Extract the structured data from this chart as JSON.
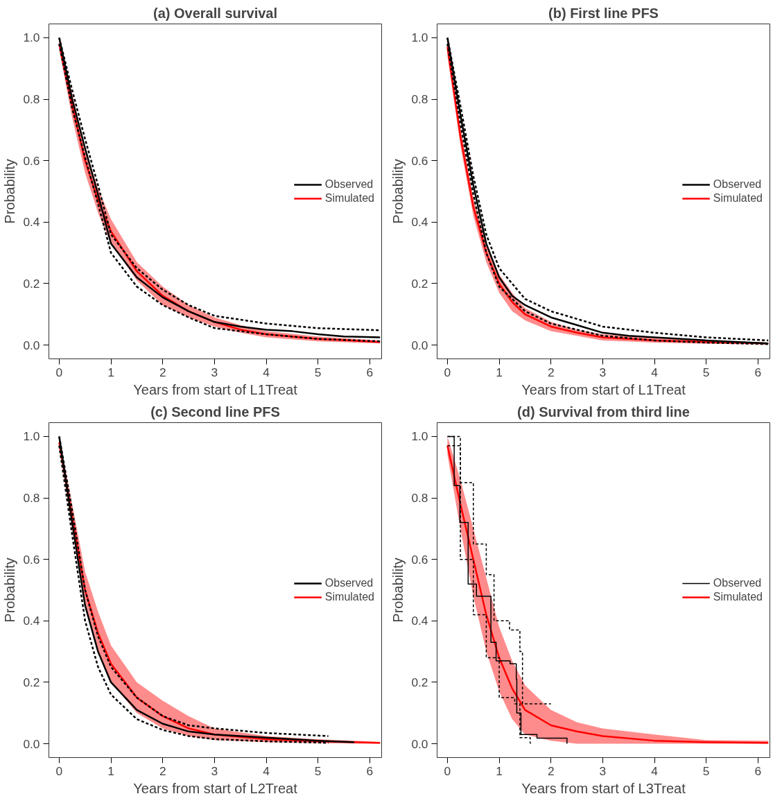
{
  "chart_data": [
    {
      "type": "line",
      "title": "(a) Overall survival",
      "xlabel": "Years from start of L1Treat",
      "ylabel": "Probability",
      "xlim": [
        -0.2,
        6.23
      ],
      "ylim": [
        -0.045,
        1.045
      ],
      "xticks": [
        0,
        1,
        2,
        3,
        4,
        5,
        6
      ],
      "yticks": [
        {
          "value": 0,
          "label": "0.0"
        },
        {
          "value": 0.2,
          "label": "0.2"
        },
        {
          "value": 0.4,
          "label": "0.4"
        },
        {
          "value": 0.6,
          "label": "0.6"
        },
        {
          "value": 0.8,
          "label": "0.8"
        },
        {
          "value": 1,
          "label": "1.0"
        }
      ],
      "grid": false,
      "legend": "right",
      "series": [
        {
          "name": "Observed",
          "color": "#000000",
          "line_style": "solid",
          "x": [
            0,
            0.25,
            0.5,
            0.75,
            1,
            1.5,
            2,
            2.5,
            3,
            3.5,
            4,
            4.5,
            5,
            5.5,
            6.2
          ],
          "values": [
            1.0,
            0.8,
            0.64,
            0.49,
            0.33,
            0.22,
            0.155,
            0.11,
            0.075,
            0.06,
            0.05,
            0.045,
            0.035,
            0.028,
            0.025
          ]
        },
        {
          "color": "#000000",
          "line_style": "dashed",
          "x": [
            0,
            0.25,
            0.5,
            0.75,
            1,
            1.5,
            2,
            2.5,
            3,
            4,
            5,
            6.2
          ],
          "values": [
            1.0,
            0.83,
            0.67,
            0.52,
            0.36,
            0.25,
            0.18,
            0.13,
            0.095,
            0.07,
            0.055,
            0.048
          ]
        },
        {
          "color": "#000000",
          "line_style": "dashed",
          "x": [
            0,
            0.25,
            0.5,
            0.75,
            1,
            1.5,
            2,
            2.5,
            3,
            4,
            5,
            6.2
          ],
          "values": [
            0.98,
            0.77,
            0.61,
            0.46,
            0.3,
            0.19,
            0.13,
            0.09,
            0.055,
            0.035,
            0.02,
            0.012
          ]
        },
        {
          "name": "Simulated",
          "color": "#ff0000",
          "line_style": "solid",
          "x": [
            0,
            0.25,
            0.5,
            0.75,
            1,
            1.5,
            2,
            2.5,
            3,
            3.5,
            4,
            5,
            6.2
          ],
          "values": [
            0.98,
            0.78,
            0.6,
            0.47,
            0.37,
            0.24,
            0.16,
            0.11,
            0.075,
            0.05,
            0.035,
            0.02,
            0.01
          ],
          "lower": [
            0.96,
            0.74,
            0.56,
            0.43,
            0.33,
            0.21,
            0.13,
            0.09,
            0.06,
            0.04,
            0.025,
            0.012,
            0.005
          ],
          "upper": [
            1.0,
            0.82,
            0.64,
            0.51,
            0.41,
            0.27,
            0.19,
            0.13,
            0.09,
            0.065,
            0.045,
            0.028,
            0.015
          ]
        }
      ]
    },
    {
      "type": "line",
      "title": "(b) First line PFS",
      "xlabel": "Years from start of L1Treat",
      "ylabel": "Probability",
      "xlim": [
        -0.2,
        6.23
      ],
      "ylim": [
        -0.045,
        1.045
      ],
      "xticks": [
        0,
        1,
        2,
        3,
        4,
        5,
        6
      ],
      "yticks": [
        {
          "value": 0,
          "label": "0.0"
        },
        {
          "value": 0.2,
          "label": "0.2"
        },
        {
          "value": 0.4,
          "label": "0.4"
        },
        {
          "value": 0.6,
          "label": "0.6"
        },
        {
          "value": 0.8,
          "label": "0.8"
        },
        {
          "value": 1,
          "label": "1.0"
        }
      ],
      "grid": false,
      "legend": "right",
      "series": [
        {
          "name": "Observed",
          "color": "#000000",
          "line_style": "solid",
          "x": [
            0,
            0.25,
            0.5,
            0.75,
            1,
            1.25,
            1.5,
            2,
            2.5,
            3,
            3.5,
            4,
            5,
            6.2
          ],
          "values": [
            1.0,
            0.75,
            0.52,
            0.33,
            0.22,
            0.16,
            0.13,
            0.09,
            0.065,
            0.04,
            0.03,
            0.025,
            0.015,
            0.005
          ]
        },
        {
          "color": "#000000",
          "line_style": "dashed",
          "x": [
            0,
            0.25,
            0.5,
            0.75,
            1,
            1.5,
            2,
            2.5,
            3,
            4,
            5,
            6.2
          ],
          "values": [
            1.0,
            0.78,
            0.55,
            0.36,
            0.25,
            0.15,
            0.11,
            0.085,
            0.06,
            0.04,
            0.025,
            0.015
          ]
        },
        {
          "color": "#000000",
          "line_style": "dashed",
          "x": [
            0,
            0.25,
            0.5,
            0.75,
            1,
            1.5,
            2,
            2.5,
            3,
            4,
            5,
            6.2
          ],
          "values": [
            0.98,
            0.72,
            0.49,
            0.3,
            0.19,
            0.11,
            0.07,
            0.05,
            0.03,
            0.015,
            0.008,
            0.003
          ]
        },
        {
          "name": "Simulated",
          "color": "#ff0000",
          "line_style": "solid",
          "x": [
            0,
            0.25,
            0.5,
            0.75,
            1,
            1.25,
            1.5,
            2,
            2.5,
            3,
            4,
            5,
            6.2
          ],
          "values": [
            0.97,
            0.68,
            0.45,
            0.3,
            0.2,
            0.14,
            0.1,
            0.06,
            0.04,
            0.025,
            0.015,
            0.01,
            0.005
          ],
          "lower": [
            0.94,
            0.65,
            0.42,
            0.27,
            0.17,
            0.11,
            0.08,
            0.045,
            0.03,
            0.015,
            0.008,
            0.004,
            0.002
          ],
          "upper": [
            1.0,
            0.71,
            0.48,
            0.33,
            0.23,
            0.17,
            0.12,
            0.075,
            0.05,
            0.035,
            0.022,
            0.015,
            0.008
          ]
        }
      ]
    },
    {
      "type": "line",
      "title": "(c) Second line PFS",
      "xlabel": "Years from start of L2Treat",
      "ylabel": "Probability",
      "xlim": [
        -0.2,
        6.23
      ],
      "ylim": [
        -0.045,
        1.045
      ],
      "xticks": [
        0,
        1,
        2,
        3,
        4,
        5,
        6
      ],
      "yticks": [
        {
          "value": 0,
          "label": "0.0"
        },
        {
          "value": 0.2,
          "label": "0.2"
        },
        {
          "value": 0.4,
          "label": "0.4"
        },
        {
          "value": 0.6,
          "label": "0.6"
        },
        {
          "value": 0.8,
          "label": "0.8"
        },
        {
          "value": 1,
          "label": "1.0"
        }
      ],
      "grid": false,
      "legend": "right",
      "series": [
        {
          "name": "Observed",
          "color": "#000000",
          "line_style": "solid",
          "x": [
            0,
            0.25,
            0.5,
            0.75,
            1,
            1.5,
            2,
            2.5,
            3,
            4,
            5,
            5.7
          ],
          "values": [
            1.0,
            0.72,
            0.45,
            0.3,
            0.2,
            0.11,
            0.065,
            0.04,
            0.03,
            0.02,
            0.01,
            0.005
          ]
        },
        {
          "color": "#000000",
          "line_style": "dashed",
          "x": [
            0,
            0.25,
            0.5,
            0.75,
            1,
            1.5,
            2,
            2.5,
            3,
            4,
            5.2
          ],
          "values": [
            1.0,
            0.76,
            0.5,
            0.35,
            0.25,
            0.15,
            0.09,
            0.06,
            0.05,
            0.035,
            0.025
          ]
        },
        {
          "color": "#000000",
          "line_style": "dashed",
          "x": [
            0,
            0.25,
            0.5,
            0.75,
            1,
            1.5,
            2,
            2.5,
            3,
            4,
            5.2
          ],
          "values": [
            0.97,
            0.68,
            0.4,
            0.25,
            0.16,
            0.08,
            0.045,
            0.025,
            0.015,
            0.008,
            0.003
          ]
        },
        {
          "name": "Simulated",
          "color": "#ff0000",
          "line_style": "solid",
          "x": [
            0,
            0.25,
            0.5,
            0.75,
            1,
            1.5,
            2,
            2.5,
            3,
            4,
            5,
            6.2
          ],
          "values": [
            0.98,
            0.74,
            0.5,
            0.36,
            0.26,
            0.15,
            0.09,
            0.05,
            0.03,
            0.015,
            0.008,
            0.003
          ],
          "lower": [
            0.96,
            0.7,
            0.45,
            0.3,
            0.2,
            0.1,
            0.05,
            0.025,
            0.012,
            0.005,
            0.002,
            0.0
          ],
          "upper": [
            1.0,
            0.78,
            0.56,
            0.43,
            0.32,
            0.2,
            0.14,
            0.09,
            0.05,
            0.025,
            0.015,
            0.006
          ]
        }
      ]
    },
    {
      "type": "line",
      "title": "(d) Survival from third line",
      "xlabel": "Years from start of L3Treat",
      "ylabel": "Probability",
      "xlim": [
        -0.2,
        6.23
      ],
      "ylim": [
        -0.045,
        1.045
      ],
      "xticks": [
        0,
        1,
        2,
        3,
        4,
        5,
        6
      ],
      "yticks": [
        {
          "value": 0,
          "label": "0.0"
        },
        {
          "value": 0.2,
          "label": "0.2"
        },
        {
          "value": 0.4,
          "label": "0.4"
        },
        {
          "value": 0.6,
          "label": "0.6"
        },
        {
          "value": 0.8,
          "label": "0.8"
        },
        {
          "value": 1,
          "label": "1.0"
        }
      ],
      "grid": false,
      "legend": "right",
      "series": [
        {
          "name": "Observed",
          "type": "step",
          "color": "#000000",
          "line_style": "solid",
          "x": [
            0,
            0.13,
            0.24,
            0.4,
            0.56,
            0.84,
            0.94,
            1.21,
            1.33,
            1.34,
            1.42,
            1.73,
            2.31
          ],
          "values": [
            1.0,
            0.84,
            0.72,
            0.52,
            0.48,
            0.33,
            0.27,
            0.26,
            0.21,
            0.1,
            0.03,
            0.018,
            0.0
          ]
        },
        {
          "type": "step",
          "color": "#000000",
          "line_style": "dashed",
          "x": [
            0,
            0.25,
            0.5,
            0.75,
            0.9,
            1.2,
            1.4,
            1.45,
            2.0
          ],
          "values": [
            1.0,
            0.85,
            0.65,
            0.55,
            0.4,
            0.37,
            0.3,
            0.13,
            0.13
          ]
        },
        {
          "type": "step",
          "color": "#000000",
          "line_style": "dashed",
          "x": [
            0,
            0.25,
            0.5,
            0.75,
            1,
            1.3,
            1.4,
            1.6
          ],
          "values": [
            0.97,
            0.6,
            0.42,
            0.28,
            0.15,
            0.13,
            0.02,
            0.0
          ]
        },
        {
          "name": "Simulated",
          "color": "#ff0000",
          "line_style": "solid",
          "x": [
            0,
            0.25,
            0.5,
            0.75,
            1,
            1.25,
            1.5,
            2,
            2.5,
            3,
            4,
            5,
            6.2
          ],
          "values": [
            0.97,
            0.78,
            0.6,
            0.42,
            0.28,
            0.18,
            0.11,
            0.06,
            0.04,
            0.025,
            0.01,
            0.005,
            0.003
          ],
          "lower": [
            0.94,
            0.7,
            0.48,
            0.3,
            0.17,
            0.08,
            0.03,
            0.01,
            0.0,
            0.0,
            0.0,
            0.0,
            0.0
          ],
          "upper": [
            1.0,
            0.86,
            0.7,
            0.54,
            0.38,
            0.27,
            0.19,
            0.11,
            0.07,
            0.05,
            0.03,
            0.012,
            0.01
          ]
        }
      ]
    }
  ]
}
